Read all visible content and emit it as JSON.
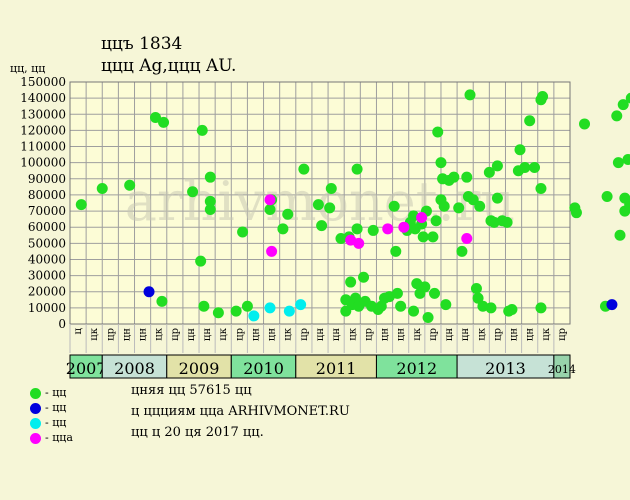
{
  "header": {
    "title": "ццъ 1834",
    "subtitle": "ццц Ag,ццц AU.",
    "ylabel": "цц, цц"
  },
  "legend": [
    {
      "label": "- цц",
      "color": "#22dd22"
    },
    {
      "label": "- цц",
      "color": "#0000dd"
    },
    {
      "label": "- цц",
      "color": "#00eeee"
    },
    {
      "label": "- цца",
      "color": "#ff00ff"
    }
  ],
  "notes": {
    "line1": "цняя цц 57615 цц",
    "line2": "ц ццциям цца ARHIVMONET.RU",
    "line3": "цц ц 20 ця 2017 цц."
  },
  "watermark": "arhivmonet.ru",
  "colors": {
    "plot_bg": "#fcfcd6",
    "grid": "#9e9e9e"
  },
  "chart_data": {
    "type": "scatter",
    "ylim": [
      0,
      150000
    ],
    "yticks": [
      0,
      10000,
      20000,
      30000,
      40000,
      50000,
      60000,
      70000,
      80000,
      90000,
      100000,
      110000,
      120000,
      130000,
      140000,
      150000
    ],
    "quarter_labels": [
      "ц",
      "цк",
      "цр",
      "цн",
      "цн",
      "цк",
      "цр",
      "цн",
      "цн",
      "цк",
      "цр",
      "цн",
      "цн",
      "цк",
      "цр",
      "цн",
      "цн",
      "цк",
      "цр",
      "цн",
      "цн",
      "цк",
      "цр",
      "цн",
      "цн",
      "цк",
      "цр",
      "цн",
      "цн",
      "цк",
      "цр"
    ],
    "years": [
      {
        "label": "2007",
        "quarters": 2,
        "color": "#7fe29c"
      },
      {
        "label": "2008",
        "quarters": 4,
        "color": "#c6e2d6"
      },
      {
        "label": "2009",
        "quarters": 4,
        "color": "#e2e2a8"
      },
      {
        "label": "2010",
        "quarters": 4,
        "color": "#7fe29c"
      },
      {
        "label": "2011",
        "quarters": 5,
        "color": "#e2e2a8"
      },
      {
        "label": "2012",
        "quarters": 5,
        "color": "#7fe29c"
      },
      {
        "label": "2013",
        "quarters": 6,
        "color": "#c6e2d6"
      },
      {
        "label": "2014",
        "quarters": 1,
        "color": "#98d3ab"
      }
    ],
    "series": [
      {
        "name": "- цц",
        "color": "#22dd22",
        "points": [
          [
            0.2,
            74000
          ],
          [
            1.5,
            84000
          ],
          [
            3.2,
            86000
          ],
          [
            4.8,
            128000
          ],
          [
            5.3,
            125000
          ],
          [
            5.2,
            14000
          ],
          [
            7.1,
            82000
          ],
          [
            7.7,
            120000
          ],
          [
            7.6,
            39000
          ],
          [
            7.8,
            11000
          ],
          [
            8.2,
            91000
          ],
          [
            8.2,
            76000
          ],
          [
            8.2,
            71000
          ],
          [
            8.7,
            7000
          ],
          [
            9.8,
            8000
          ],
          [
            10.2,
            57000
          ],
          [
            10.5,
            11000
          ],
          [
            11.9,
            71000
          ],
          [
            12.0,
            77000
          ],
          [
            12.7,
            59000
          ],
          [
            13.0,
            68000
          ],
          [
            14.0,
            96000
          ],
          [
            14.9,
            74000
          ],
          [
            15.1,
            61000
          ],
          [
            15.7,
            84000
          ],
          [
            15.6,
            72000
          ],
          [
            16.3,
            53000
          ],
          [
            16.6,
            15000
          ],
          [
            16.6,
            8000
          ],
          [
            16.8,
            54000
          ],
          [
            16.9,
            26000
          ],
          [
            17.0,
            12000
          ],
          [
            17.3,
            96000
          ],
          [
            17.3,
            59000
          ],
          [
            17.2,
            16000
          ],
          [
            17.4,
            11000
          ],
          [
            17.7,
            29000
          ],
          [
            17.8,
            14000
          ],
          [
            18.2,
            11000
          ],
          [
            18.3,
            58000
          ],
          [
            18.6,
            9000
          ],
          [
            18.8,
            11000
          ],
          [
            19.0,
            16000
          ],
          [
            19.3,
            17000
          ],
          [
            19.6,
            73000
          ],
          [
            19.7,
            45000
          ],
          [
            19.8,
            19000
          ],
          [
            20.0,
            11000
          ],
          [
            20.4,
            58000
          ],
          [
            20.6,
            63000
          ],
          [
            20.8,
            67000
          ],
          [
            20.9,
            59000
          ],
          [
            20.8,
            8000
          ],
          [
            21.0,
            25000
          ],
          [
            21.2,
            19000
          ],
          [
            21.3,
            62000
          ],
          [
            21.4,
            54000
          ],
          [
            21.6,
            70000
          ],
          [
            21.5,
            23000
          ],
          [
            21.7,
            4000
          ],
          [
            22.1,
            19000
          ],
          [
            22.0,
            54000
          ],
          [
            22.2,
            64000
          ],
          [
            22.3,
            119000
          ],
          [
            22.5,
            100000
          ],
          [
            22.6,
            90000
          ],
          [
            22.5,
            77000
          ],
          [
            22.7,
            73000
          ],
          [
            22.8,
            12000
          ],
          [
            23.0,
            89000
          ],
          [
            23.3,
            91000
          ],
          [
            23.6,
            72000
          ],
          [
            23.8,
            45000
          ],
          [
            24.1,
            91000
          ],
          [
            24.2,
            79000
          ],
          [
            24.3,
            142000
          ],
          [
            24.5,
            77000
          ],
          [
            24.7,
            22000
          ],
          [
            24.8,
            16000
          ],
          [
            24.9,
            73000
          ],
          [
            25.1,
            11000
          ],
          [
            25.5,
            94000
          ],
          [
            25.6,
            64000
          ],
          [
            25.6,
            10000
          ],
          [
            25.8,
            63000
          ],
          [
            26.0,
            78000
          ],
          [
            26.0,
            98000
          ],
          [
            26.3,
            64000
          ],
          [
            26.6,
            63000
          ],
          [
            26.7,
            8000
          ],
          [
            26.9,
            9000
          ],
          [
            27.3,
            95000
          ],
          [
            27.4,
            108000
          ],
          [
            27.7,
            97000
          ],
          [
            28.0,
            126000
          ],
          [
            28.3,
            97000
          ],
          [
            28.7,
            139000
          ],
          [
            28.8,
            141000
          ],
          [
            28.7,
            84000
          ],
          [
            28.7,
            10000
          ],
          [
            30.8,
            72000
          ],
          [
            30.9,
            69000
          ],
          [
            31.4,
            124000
          ],
          [
            32.7,
            11000
          ],
          [
            32.8,
            79000
          ],
          [
            33.4,
            129000
          ],
          [
            33.5,
            100000
          ],
          [
            33.6,
            55000
          ],
          [
            33.8,
            136000
          ],
          [
            33.9,
            78000
          ],
          [
            33.9,
            70000
          ],
          [
            34.1,
            102000
          ],
          [
            34.2,
            74000
          ],
          [
            34.3,
            140000
          ],
          [
            34.6,
            54000
          ],
          [
            34.6,
            92000
          ],
          [
            34.8,
            124000
          ],
          [
            34.9,
            129000
          ],
          [
            35.1,
            89000
          ],
          [
            35.1,
            19000
          ],
          [
            35.3,
            14000
          ],
          [
            35.6,
            29000
          ],
          [
            36.0,
            28000
          ],
          [
            36.1,
            114000
          ],
          [
            36.3,
            10000
          ]
        ]
      },
      {
        "name": "- цц",
        "color": "#0000dd",
        "points": [
          [
            4.4,
            20000
          ],
          [
            33.1,
            12000
          ],
          [
            35.0,
            12000
          ]
        ]
      },
      {
        "name": "- цц",
        "color": "#00eeee",
        "points": [
          [
            10.9,
            5000
          ],
          [
            11.9,
            10000
          ],
          [
            13.1,
            8000
          ],
          [
            13.8,
            12000
          ]
        ]
      },
      {
        "name": "- цца",
        "color": "#ff00ff",
        "points": [
          [
            11.9,
            77000
          ],
          [
            12.0,
            45000
          ],
          [
            16.9,
            52000
          ],
          [
            17.4,
            50000
          ],
          [
            19.2,
            59000
          ],
          [
            20.2,
            60000
          ],
          [
            21.3,
            66000
          ],
          [
            24.1,
            53000
          ]
        ]
      }
    ]
  }
}
